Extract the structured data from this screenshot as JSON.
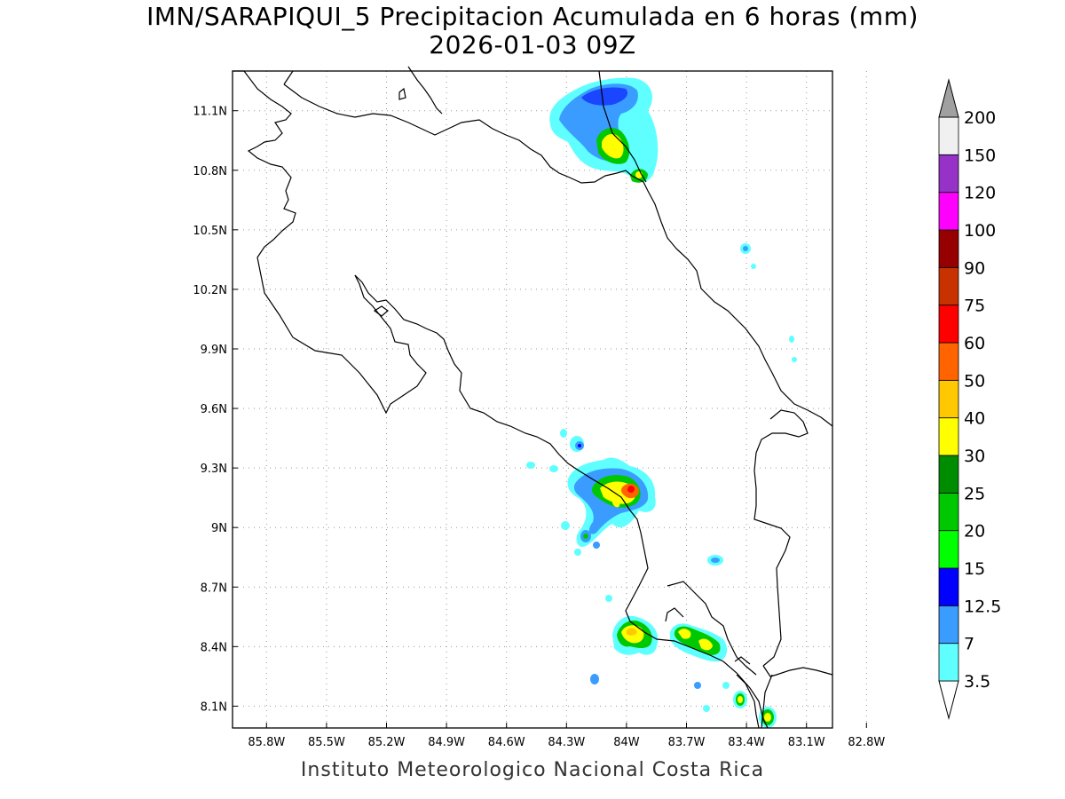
{
  "title": {
    "line1": "IMN/SARAPIQUI_5 Precipitacion Acumulada en 6 horas (mm)",
    "line2": "2026-01-03 09Z"
  },
  "footer": "Instituto Meteorologico Nacional Costa Rica",
  "axes": {
    "x_ticks": [
      "85.8W",
      "85.5W",
      "85.2W",
      "84.9W",
      "84.6W",
      "84.3W",
      "84W",
      "83.7W",
      "83.4W",
      "83.1W",
      "82.8W"
    ],
    "x_values": [
      -85.8,
      -85.5,
      -85.2,
      -84.9,
      -84.6,
      -84.3,
      -84.0,
      -83.7,
      -83.4,
      -83.1,
      -82.8
    ],
    "y_ticks": [
      "11.1N",
      "10.8N",
      "10.5N",
      "10.2N",
      "9.9N",
      "9.6N",
      "9.3N",
      "9N",
      "8.7N",
      "8.4N",
      "8.1N"
    ],
    "y_values": [
      11.1,
      10.8,
      10.5,
      10.2,
      9.9,
      9.6,
      9.3,
      9.0,
      8.7,
      8.4,
      8.1
    ],
    "lon_range": [
      -85.97,
      -82.97
    ],
    "lat_range": [
      7.99,
      11.3
    ],
    "grid": true
  },
  "legend": {
    "labels": [
      "3.5",
      "7",
      "12.5",
      "15",
      "20",
      "25",
      "30",
      "40",
      "50",
      "60",
      "75",
      "90",
      "100",
      "120",
      "150",
      "200"
    ],
    "colors": [
      "#ffffff",
      "#5fffff",
      "#3a9cff",
      "#0000ff",
      "#00ff00",
      "#00c800",
      "#008c00",
      "#ffff00",
      "#ffc800",
      "#ff6400",
      "#ff0000",
      "#c83200",
      "#960000",
      "#ff00ff",
      "#9632c8",
      "#f0f0f0",
      "#a0a0a0"
    ]
  }
}
